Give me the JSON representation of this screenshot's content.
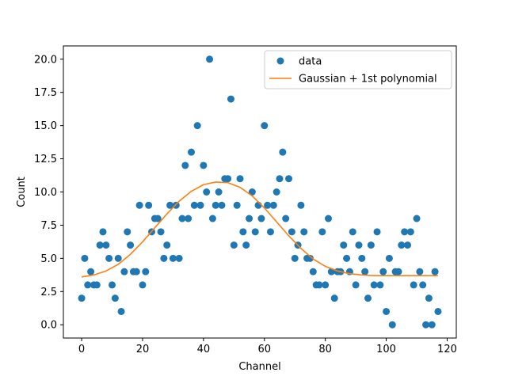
{
  "chart_data": {
    "type": "scatter",
    "title": "",
    "xlabel": "Channel",
    "ylabel": "Count",
    "xlim": [
      -6,
      123
    ],
    "ylim": [
      -1,
      21
    ],
    "xticks": [
      0,
      20,
      40,
      60,
      80,
      100,
      120
    ],
    "xtick_labels": [
      "0",
      "20",
      "40",
      "60",
      "80",
      "100",
      "120"
    ],
    "yticks": [
      0,
      2.5,
      5,
      7.5,
      10,
      12.5,
      15,
      17.5,
      20
    ],
    "ytick_labels": [
      "0.0",
      "2.5",
      "5.0",
      "7.5",
      "10.0",
      "12.5",
      "15.0",
      "17.5",
      "20.0"
    ],
    "grid": false,
    "legend_position": "top-right",
    "series": [
      {
        "name": "data",
        "kind": "scatter",
        "color": "#1f77b4",
        "x": [
          0,
          1,
          2,
          3,
          4,
          5,
          6,
          7,
          8,
          9,
          10,
          11,
          12,
          13,
          14,
          15,
          16,
          17,
          18,
          19,
          20,
          21,
          22,
          23,
          24,
          25,
          26,
          27,
          28,
          29,
          30,
          31,
          32,
          33,
          34,
          35,
          36,
          37,
          38,
          39,
          40,
          41,
          42,
          43,
          44,
          45,
          46,
          47,
          48,
          49,
          50,
          51,
          52,
          53,
          54,
          55,
          56,
          57,
          58,
          59,
          60,
          61,
          62,
          63,
          64,
          65,
          66,
          67,
          68,
          69,
          70,
          71,
          72,
          73,
          74,
          75,
          76,
          77,
          78,
          79,
          80,
          81,
          82,
          83,
          84,
          85,
          86,
          87,
          88,
          89,
          90,
          91,
          92,
          93,
          94,
          95,
          96,
          97,
          98,
          99,
          100,
          101,
          102,
          103,
          104,
          105,
          106,
          107,
          108,
          109,
          110,
          111,
          112,
          113,
          114,
          115,
          116,
          117
        ],
        "y": [
          2,
          5,
          3,
          4,
          3,
          3,
          6,
          7,
          6,
          5,
          3,
          2,
          5,
          1,
          4,
          7,
          6,
          4,
          4,
          9,
          3,
          4,
          9,
          7,
          8,
          8,
          7,
          5,
          6,
          9,
          5,
          9,
          5,
          8,
          12,
          8,
          13,
          9,
          15,
          9,
          12,
          10,
          20,
          8,
          9,
          10,
          9,
          11,
          11,
          17,
          6,
          9,
          11,
          7,
          6,
          8,
          10,
          7,
          9,
          8,
          15,
          9,
          7,
          9,
          10,
          11,
          13,
          8,
          11,
          7,
          5,
          6,
          9,
          7,
          5,
          5,
          4,
          3,
          3,
          7,
          3,
          8,
          4,
          2,
          4,
          4,
          6,
          5,
          4,
          7,
          3,
          6,
          5,
          4,
          2,
          6,
          3,
          7,
          3,
          4,
          1,
          5,
          0,
          4,
          4,
          6,
          7,
          6,
          7,
          3,
          8,
          4,
          3,
          0,
          2,
          0,
          4,
          1
        ]
      },
      {
        "name": "Gaussian + 1st polynomial",
        "kind": "line",
        "color": "#ff7f0e",
        "x": [
          0,
          4,
          8,
          12,
          16,
          20,
          24,
          28,
          32,
          36,
          40,
          44,
          48,
          52,
          56,
          60,
          64,
          68,
          72,
          76,
          80,
          84,
          88,
          92,
          96,
          100,
          104,
          108,
          112,
          117
        ],
        "y": [
          3.6,
          3.75,
          4.05,
          4.55,
          5.3,
          6.25,
          7.3,
          8.35,
          9.3,
          10.05,
          10.55,
          10.75,
          10.7,
          10.35,
          9.7,
          8.8,
          7.75,
          6.7,
          5.75,
          4.95,
          4.4,
          4.05,
          3.85,
          3.75,
          3.7,
          3.7,
          3.7,
          3.7,
          3.7,
          3.7
        ]
      }
    ]
  }
}
